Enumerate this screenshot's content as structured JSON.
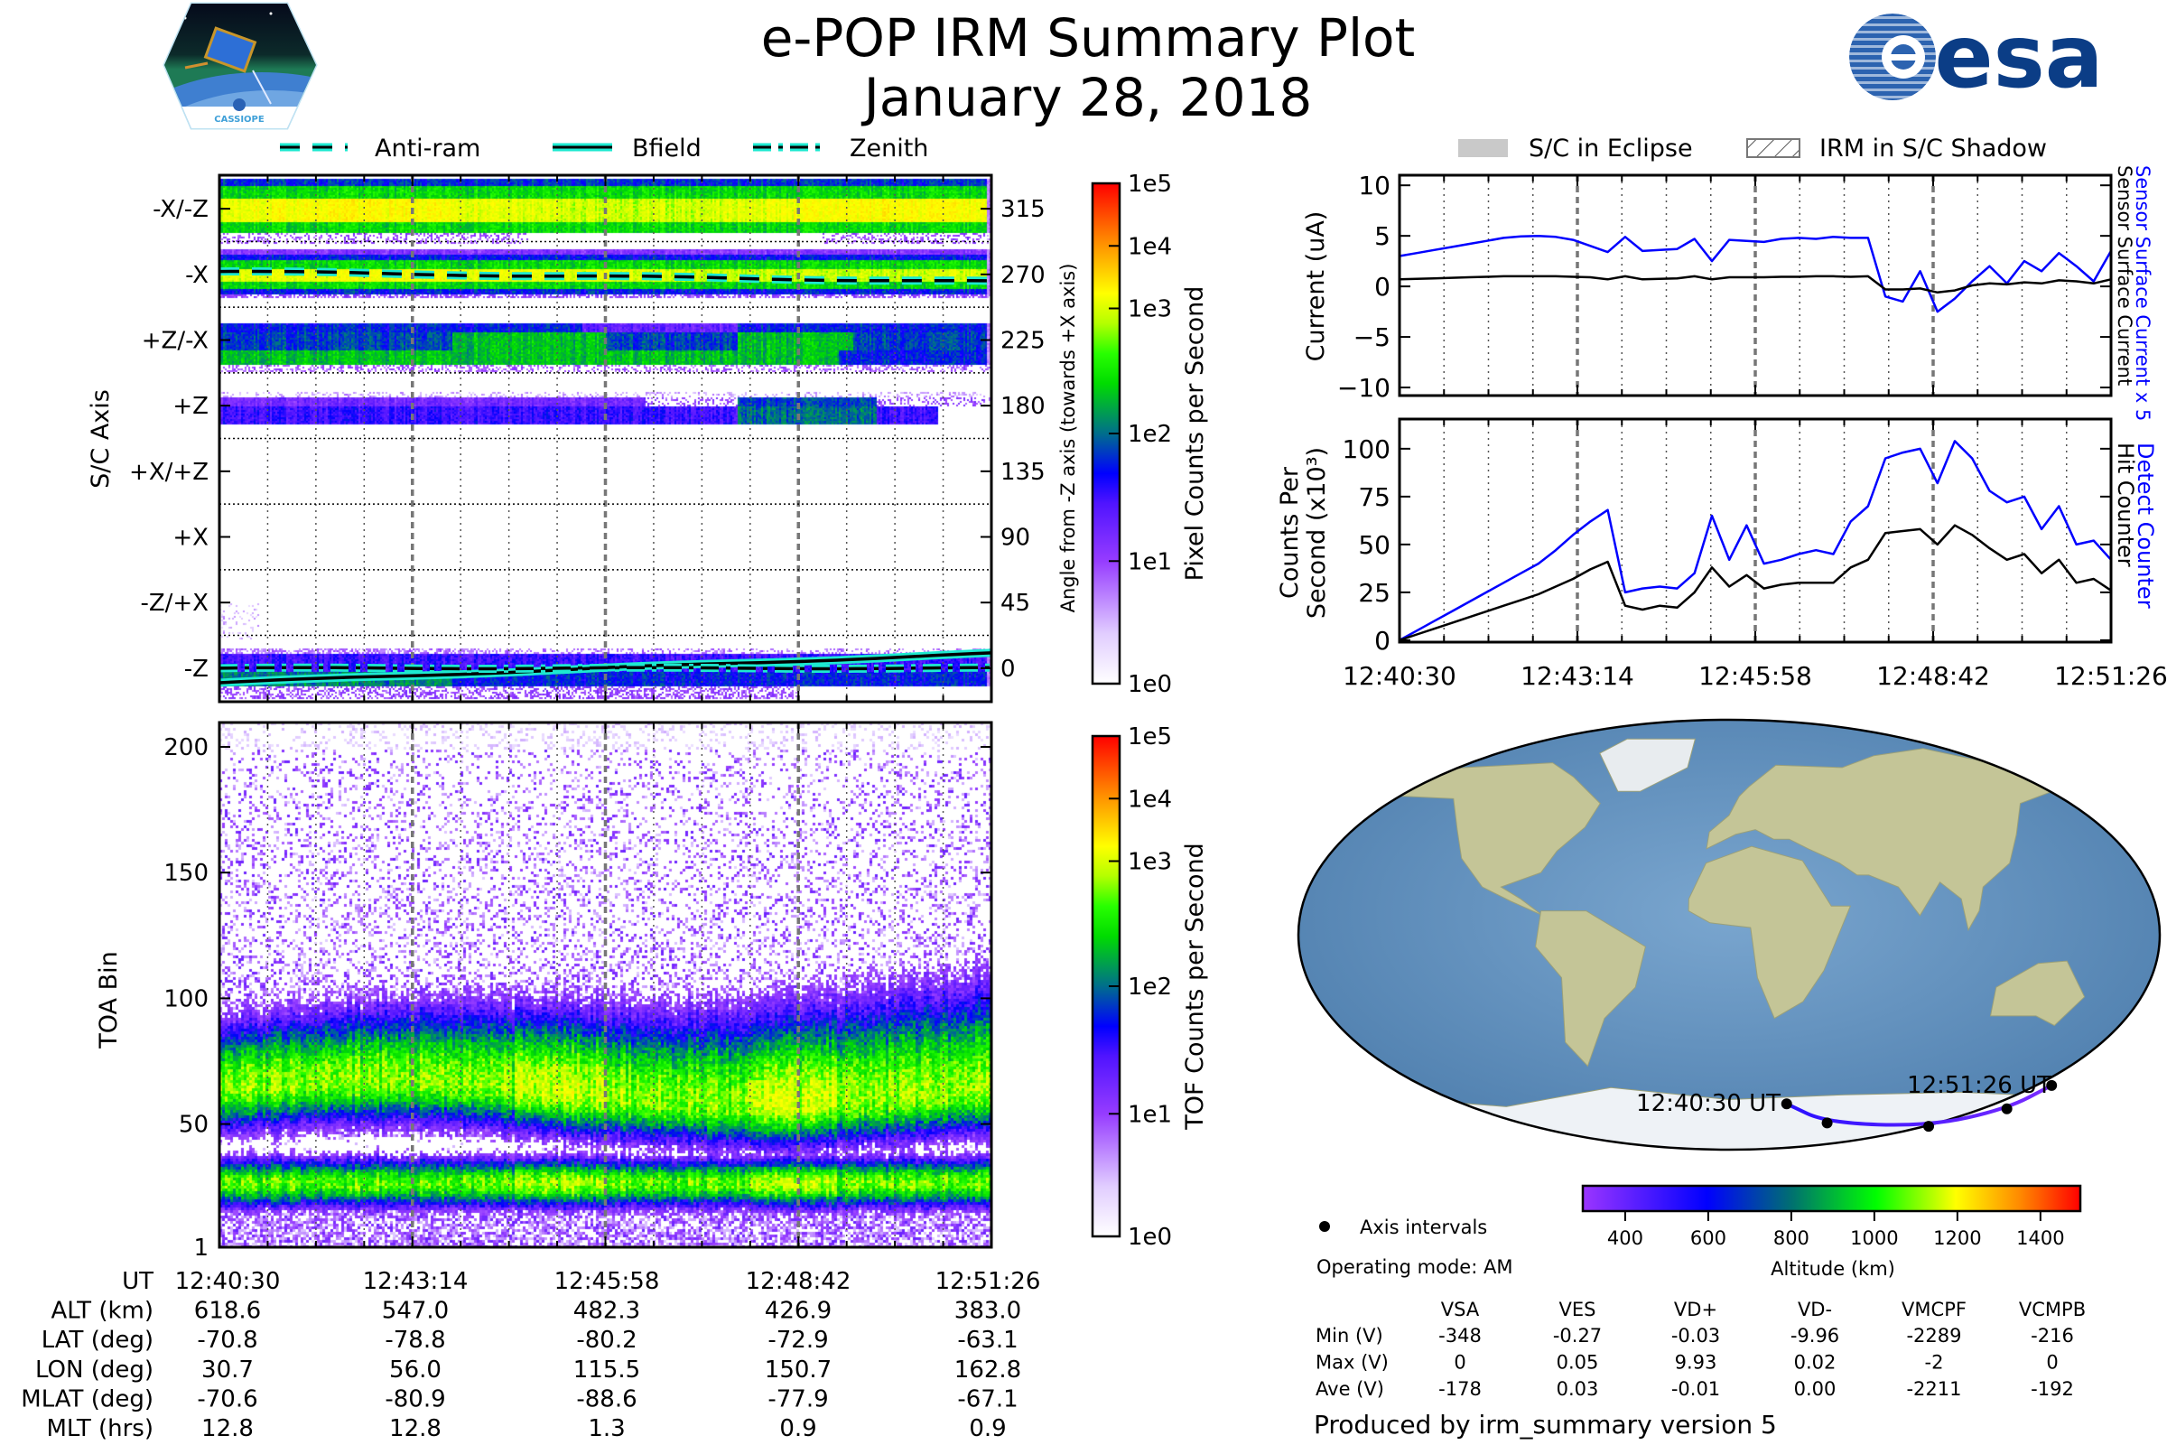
{
  "header": {
    "title": "e-POP IRM Summary Plot",
    "date": "January 28, 2018",
    "logo_left_text": "CASSIOPE",
    "logo_right_text": "esa"
  },
  "legend_left": [
    {
      "label": "Anti-ram",
      "style": "dashed"
    },
    {
      "label": "Bfield",
      "style": "solid"
    },
    {
      "label": "Zenith",
      "style": "dashdot"
    }
  ],
  "legend_right": [
    {
      "label": "S/C in Eclipse",
      "style": "gray-fill"
    },
    {
      "label": "IRM in S/C Shadow",
      "style": "hatched"
    }
  ],
  "colors": {
    "overlay_line": "#1de9d0",
    "blue_series": "#0000ff",
    "black_series": "#000000",
    "esa_blue": "#0b3d86",
    "ocean": "#5e8fbd",
    "land": "#c4c597"
  },
  "time_ticks": [
    "12:40:30",
    "12:43:14",
    "12:45:58",
    "12:48:42",
    "12:51:26"
  ],
  "ephemeris": {
    "rows": [
      {
        "label": "UT",
        "values": [
          "12:40:30",
          "12:43:14",
          "12:45:58",
          "12:48:42",
          "12:51:26"
        ]
      },
      {
        "label": "ALT (km)",
        "values": [
          "618.6",
          "547.0",
          "482.3",
          "426.9",
          "383.0"
        ]
      },
      {
        "label": "LAT (deg)",
        "values": [
          "-70.8",
          "-78.8",
          "-80.2",
          "-72.9",
          "-63.1"
        ]
      },
      {
        "label": "LON (deg)",
        "values": [
          "30.7",
          "56.0",
          "115.5",
          "150.7",
          "162.8"
        ]
      },
      {
        "label": "MLAT (deg)",
        "values": [
          "-70.6",
          "-80.9",
          "-88.6",
          "-77.9",
          "-67.1"
        ]
      },
      {
        "label": "MLT (hrs)",
        "values": [
          "12.8",
          "12.8",
          "1.3",
          "0.9",
          "0.9"
        ]
      }
    ]
  },
  "map": {
    "start_label": "12:40:30 UT",
    "end_label": "12:51:26 UT",
    "track": {
      "lat": [
        -70.8,
        -78.8,
        -80.2,
        -72.9,
        -63.1
      ],
      "lon": [
        30.7,
        56.0,
        115.5,
        150.7,
        162.8
      ],
      "alt_km": [
        618.6,
        547.0,
        482.3,
        426.9,
        383.0
      ]
    },
    "legend_label": "Axis intervals",
    "operating_mode": "Operating mode: AM",
    "colorbar": {
      "label": "Altitude (km)",
      "ticks": [
        "400",
        "600",
        "800",
        "1000",
        "1200",
        "1400"
      ],
      "tick_values": [
        400,
        600,
        800,
        1000,
        1200,
        1400
      ],
      "range": [
        298,
        1496
      ]
    }
  },
  "voltages": {
    "columns": [
      "VSA",
      "VES",
      "VD+",
      "VD-",
      "VMCPF",
      "VCMPB"
    ],
    "rows": [
      {
        "label": "Min (V)",
        "values": [
          "-348",
          "-0.27",
          "-0.03",
          "-9.96",
          "-2289",
          "-216"
        ]
      },
      {
        "label": "Max (V)",
        "values": [
          "0",
          "0.05",
          "9.93",
          "0.02",
          "-2",
          "0"
        ]
      },
      {
        "label": "Ave (V)",
        "values": [
          "-178",
          "0.03",
          "-0.01",
          "0.00",
          "-2211",
          "-192"
        ]
      }
    ]
  },
  "footer": "Produced by irm_summary version 5",
  "chart_data": [
    {
      "type": "heatmap",
      "name": "Pixel angle spectrogram",
      "ylabel": "S/C Axis",
      "ylabel_right": "Angle from -Z axis (towards +X axis)",
      "y_tick_labels": [
        "-X/-Z",
        "-X",
        "+Z/-X",
        "+Z",
        "+X/+Z",
        "+X",
        "-Z/+X",
        "-Z"
      ],
      "y_tick_values": [
        315,
        270,
        225,
        180,
        135,
        90,
        45,
        0
      ],
      "right_tick_labels": [
        "315",
        "270",
        "225",
        "180",
        "135",
        "90",
        "45",
        "0"
      ],
      "ylim": [
        -23,
        338
      ],
      "overlays": {
        "anti_ram_deg": [
          272,
          265
        ],
        "bfield_deg": [
          -10,
          10
        ],
        "zenith_deg": [
          0,
          0
        ]
      },
      "colorbar": {
        "label": "Pixel Counts per Second",
        "ticks": [
          "1e5",
          "1e4",
          "1e3",
          "1e2",
          "1e1",
          "1e0"
        ]
      }
    },
    {
      "type": "heatmap",
      "name": "TOF spectrogram",
      "ylabel": "TOA Bin",
      "y_tick_labels": [
        "200",
        "150",
        "100",
        "50",
        "1"
      ],
      "y_tick_values": [
        200,
        150,
        100,
        50,
        1
      ],
      "ylim": [
        1,
        209.7
      ],
      "colorbar": {
        "label": "TOF Counts per Second",
        "ticks": [
          "1e5",
          "1e4",
          "1e3",
          "1e2",
          "1e1",
          "1e0"
        ]
      }
    },
    {
      "type": "line",
      "name": "Sensor current",
      "ylabel": "Current (uA)",
      "y_tick_labels": [
        "10",
        "5",
        "0",
        "−5",
        "−10"
      ],
      "y_tick_values": [
        10,
        5,
        0,
        -5,
        -10
      ],
      "ylim": [
        -10.8,
        11
      ],
      "x_seconds_step": 16,
      "series": [
        {
          "name": "Sensor Surface Current x 5",
          "color": "#0000ff",
          "values": [
            3.0,
            3.3,
            3.6,
            3.9,
            4.2,
            4.5,
            4.8,
            4.95,
            5.0,
            4.9,
            4.6,
            4.0,
            3.4,
            4.9,
            3.5,
            3.6,
            3.7,
            4.7,
            2.5,
            4.6,
            4.5,
            4.4,
            4.7,
            4.8,
            4.7,
            4.9,
            4.8,
            4.8,
            -1.0,
            -1.5,
            1.5,
            -2.5,
            -1.2,
            0.5,
            2.0,
            0.3,
            2.5,
            1.5,
            3.3,
            2.0,
            0.5,
            3.5
          ]
        },
        {
          "name": "Sensor Surface Current",
          "color": "#000000",
          "values": [
            0.7,
            0.75,
            0.8,
            0.85,
            0.9,
            0.95,
            1.0,
            1.0,
            1.0,
            1.0,
            0.95,
            0.9,
            0.7,
            1.0,
            0.7,
            0.75,
            0.8,
            1.0,
            0.7,
            0.9,
            0.9,
            0.9,
            0.95,
            0.95,
            1.0,
            1.0,
            0.95,
            1.0,
            -0.3,
            -0.3,
            -0.2,
            -0.6,
            -0.4,
            0.1,
            0.3,
            0.2,
            0.4,
            0.3,
            0.6,
            0.5,
            0.3,
            0.7
          ]
        }
      ]
    },
    {
      "type": "line",
      "name": "Counters",
      "ylabel_line1": "Counts Per",
      "ylabel_line2": "Second (x10³)",
      "y_tick_labels": [
        "100",
        "75",
        "50",
        "25",
        "0"
      ],
      "y_tick_values": [
        100,
        75,
        50,
        25,
        0
      ],
      "ylim": [
        -1,
        115.5
      ],
      "x_seconds_step": 16,
      "series": [
        {
          "name": "Detect Counter",
          "color": "#0000ff",
          "values": [
            0,
            5,
            10,
            15,
            20,
            25,
            30,
            35,
            40,
            47,
            55,
            62,
            68,
            25,
            27,
            28,
            27,
            35,
            65,
            42,
            60,
            40,
            42,
            45,
            47,
            45,
            62,
            70,
            95,
            98,
            100,
            82,
            104,
            95,
            78,
            72,
            75,
            58,
            70,
            50,
            52,
            42
          ]
        },
        {
          "name": "Hit Counter",
          "color": "#000000",
          "values": [
            0,
            3,
            6,
            9,
            12,
            15,
            18,
            21,
            24,
            28,
            32,
            37,
            41,
            18,
            16,
            18,
            17,
            25,
            38,
            28,
            34,
            27,
            29,
            30,
            30,
            30,
            38,
            42,
            56,
            57,
            58,
            50,
            60,
            55,
            48,
            42,
            45,
            35,
            42,
            30,
            32,
            26
          ]
        }
      ]
    }
  ]
}
